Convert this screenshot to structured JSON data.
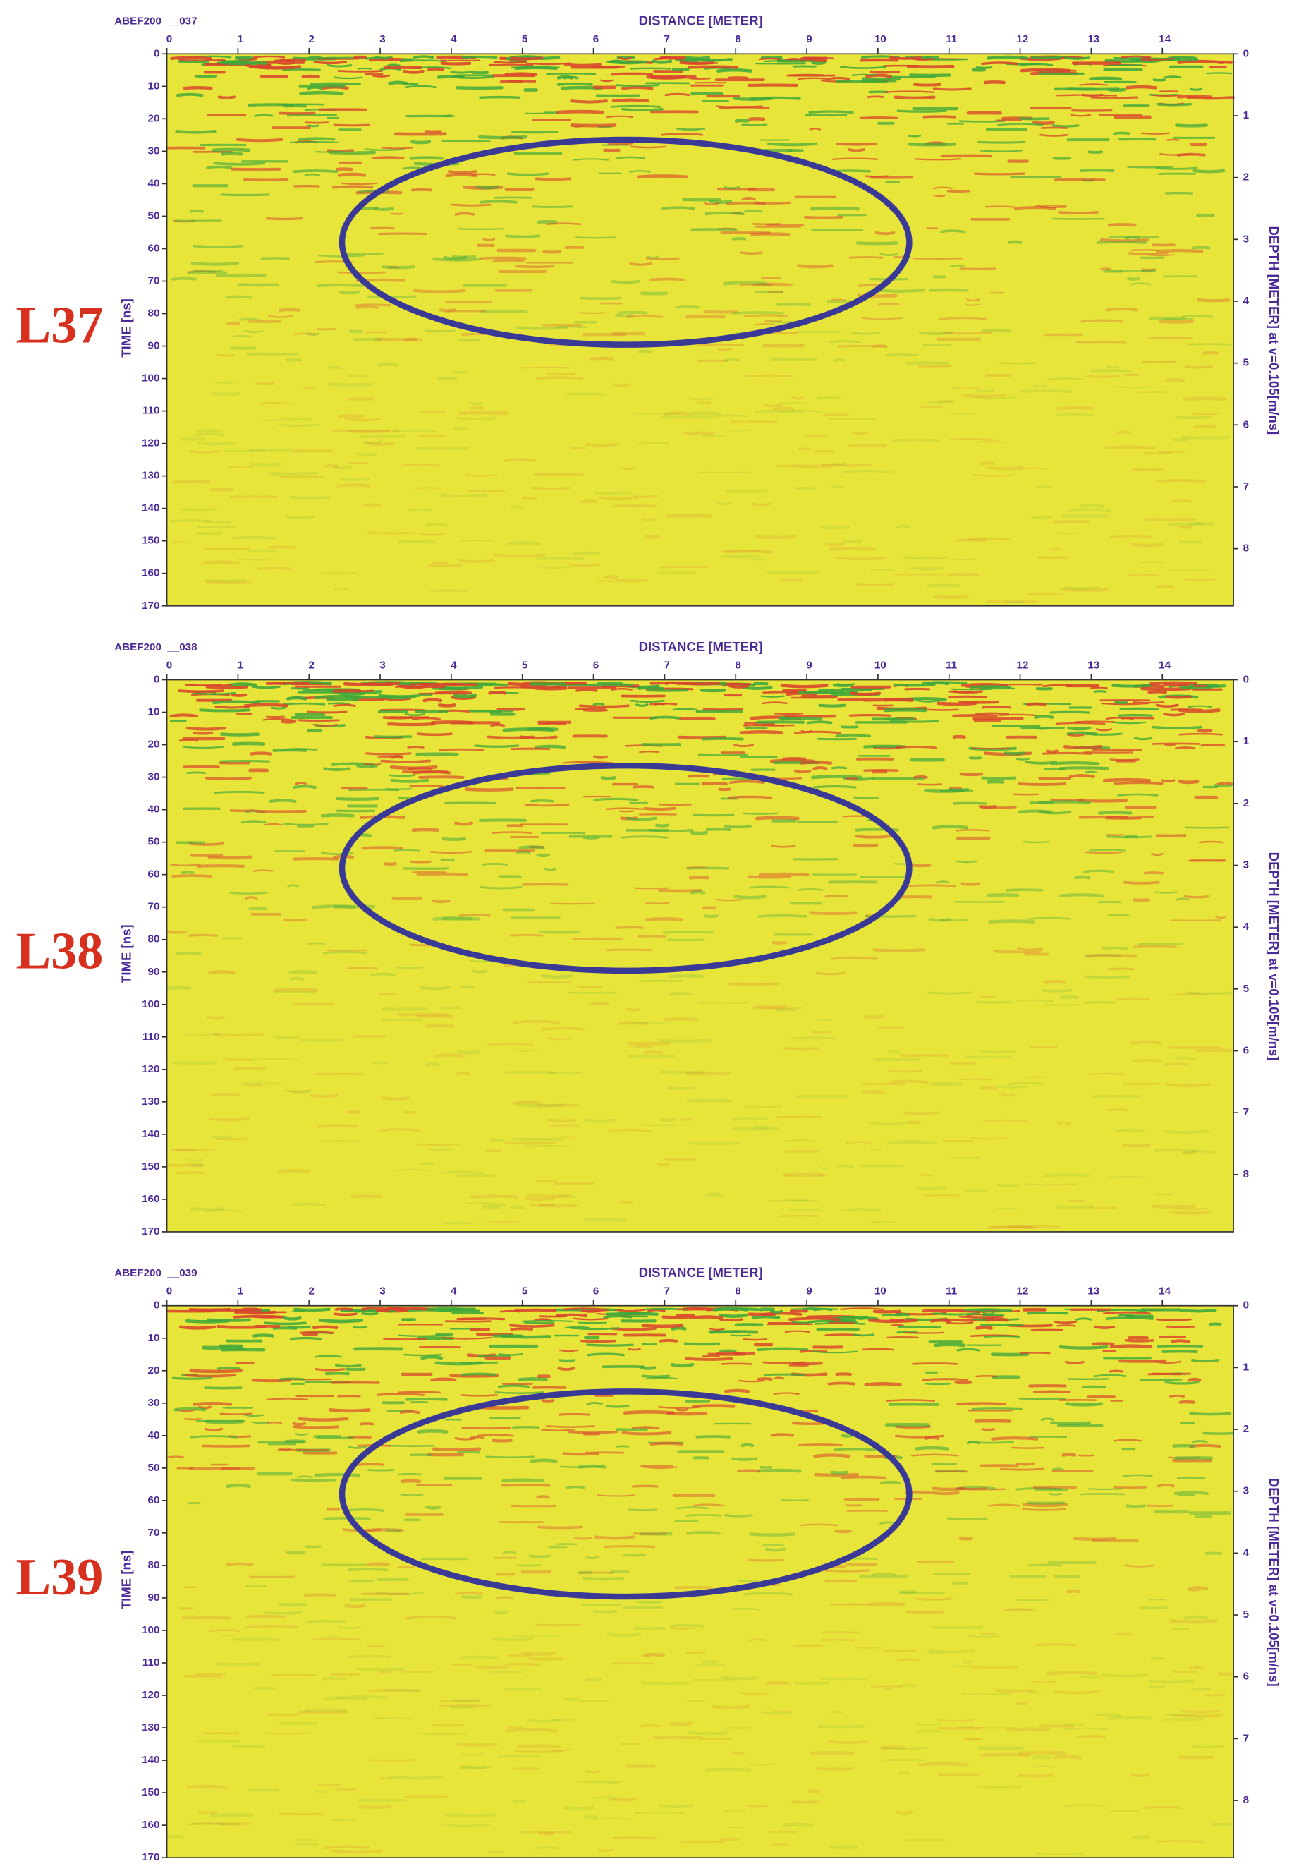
{
  "chart_data": [
    {
      "type": "radargram",
      "title": "ABEF200  __037",
      "panel_label": "L37",
      "xlabel": "DISTANCE [METER]",
      "ylabel": "TIME [ns]",
      "y2label": "DEPTH [METER] at v=0.105[m/ns]",
      "xlim": [
        0,
        15
      ],
      "xticks": [
        0,
        1,
        2,
        3,
        4,
        5,
        6,
        7,
        8,
        9,
        10,
        11,
        12,
        13,
        14
      ],
      "ylim": [
        0,
        170
      ],
      "yticks": [
        0,
        10,
        20,
        30,
        40,
        50,
        60,
        70,
        80,
        90,
        100,
        110,
        120,
        130,
        140,
        150,
        160,
        170
      ],
      "y2lim": [
        0,
        8.925
      ],
      "y2ticks": [
        0,
        1,
        2,
        3,
        4,
        5,
        6,
        7,
        8
      ]
    },
    {
      "type": "radargram",
      "title": "ABEF200  __038",
      "panel_label": "L38",
      "xlabel": "DISTANCE [METER]",
      "ylabel": "TIME [ns]",
      "y2label": "DEPTH [METER] at v=0.105[m/ns]",
      "xlim": [
        0,
        15
      ],
      "xticks": [
        0,
        1,
        2,
        3,
        4,
        5,
        6,
        7,
        8,
        9,
        10,
        11,
        12,
        13,
        14
      ],
      "ylim": [
        0,
        170
      ],
      "yticks": [
        0,
        10,
        20,
        30,
        40,
        50,
        60,
        70,
        80,
        90,
        100,
        110,
        120,
        130,
        140,
        150,
        160,
        170
      ],
      "y2lim": [
        0,
        8.925
      ],
      "y2ticks": [
        0,
        1,
        2,
        3,
        4,
        5,
        6,
        7,
        8
      ]
    },
    {
      "type": "radargram",
      "title": "ABEF200  __039",
      "panel_label": "L39",
      "xlabel": "DISTANCE [METER]",
      "ylabel": "TIME [ns]",
      "y2label": "DEPTH [METER] at v=0.105[m/ns]",
      "xlim": [
        0,
        15
      ],
      "xticks": [
        0,
        1,
        2,
        3,
        4,
        5,
        6,
        7,
        8,
        9,
        10,
        11,
        12,
        13,
        14
      ],
      "ylim": [
        0,
        170
      ],
      "yticks": [
        0,
        10,
        20,
        30,
        40,
        50,
        60,
        70,
        80,
        90,
        100,
        110,
        120,
        130,
        140,
        150,
        160,
        170
      ],
      "y2lim": [
        0,
        8.925
      ],
      "y2ticks": [
        0,
        1,
        2,
        3,
        4,
        5,
        6,
        7,
        8
      ]
    }
  ]
}
